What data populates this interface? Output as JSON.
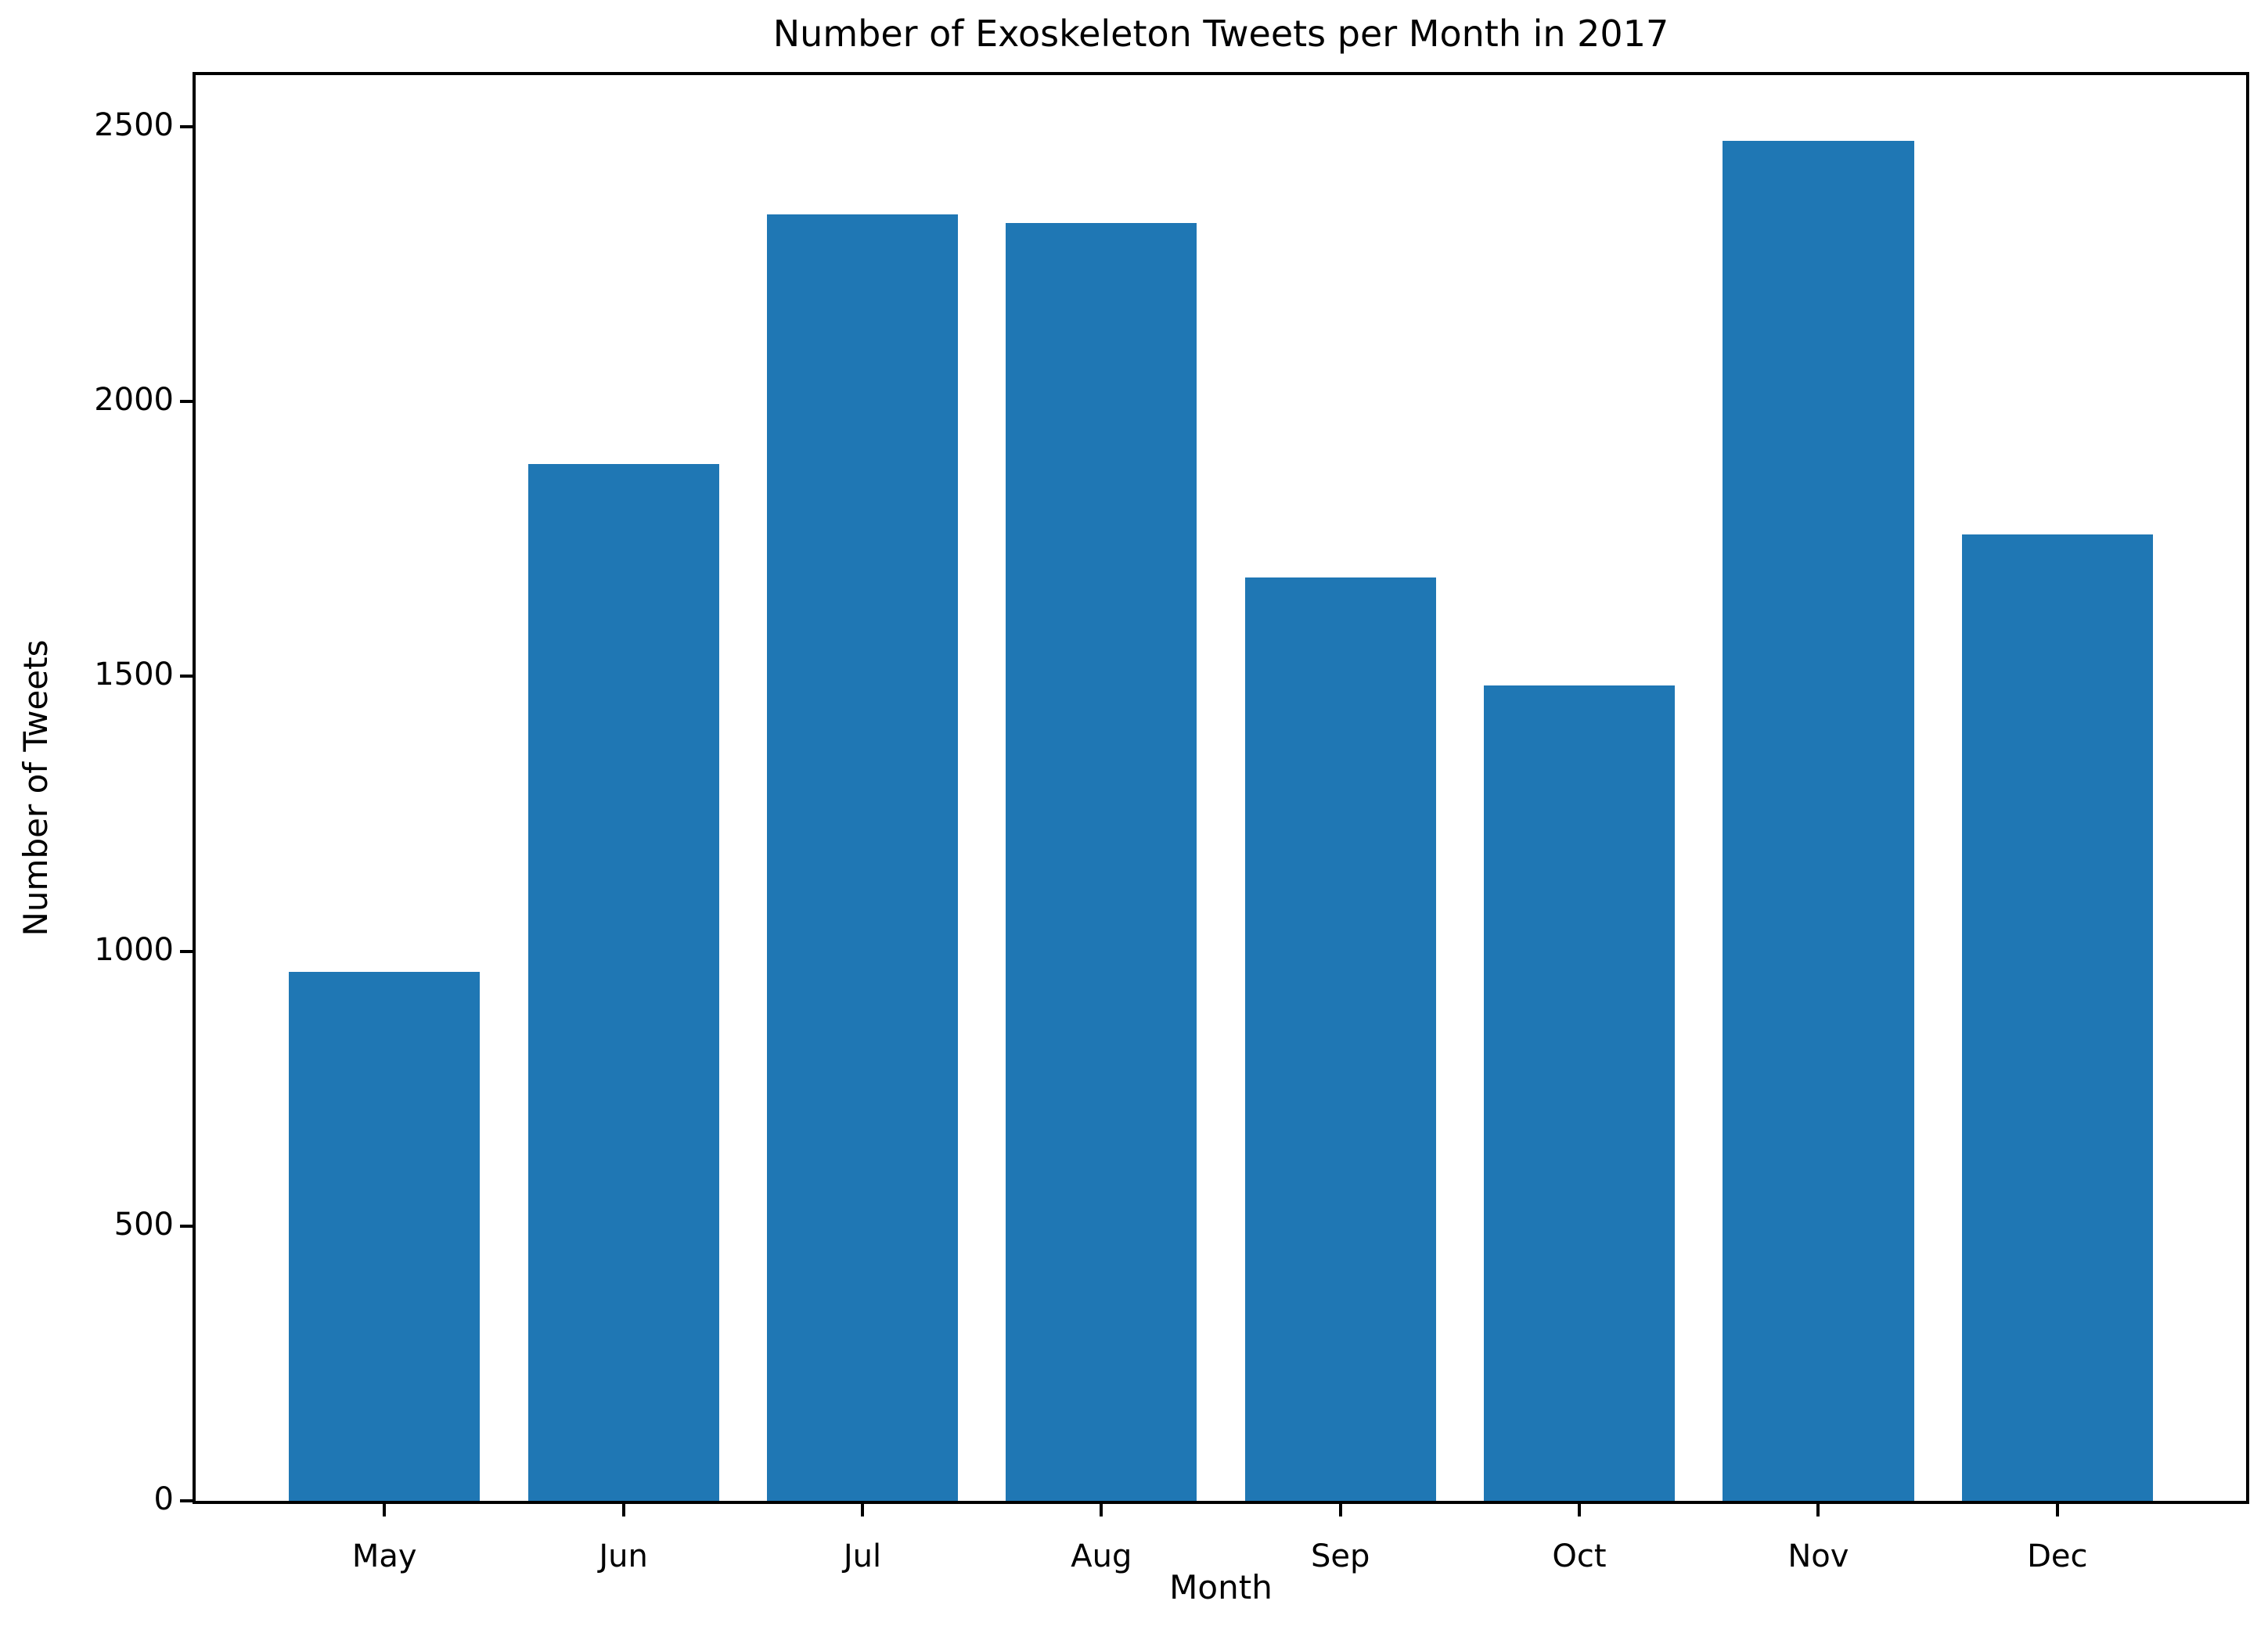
{
  "chart_data": {
    "type": "bar",
    "title": "Number of Exoskeleton Tweets per Month in 2017",
    "xlabel": "Month",
    "ylabel": "Number of Tweets",
    "categories": [
      "May",
      "Jun",
      "Jul",
      "Aug",
      "Sep",
      "Oct",
      "Nov",
      "Dec"
    ],
    "values": [
      963,
      1887,
      2340,
      2325,
      1680,
      1483,
      2475,
      1758
    ],
    "bar_color": "#1f77b4",
    "bar_width": 0.8,
    "yticks": [
      0,
      500,
      1000,
      1500,
      2000,
      2500
    ],
    "ylim": [
      0,
      2594
    ],
    "xlim": [
      -0.79,
      7.79
    ],
    "grid": false,
    "legend": null,
    "background_color": "#ffffff",
    "text_color": "#000000"
  }
}
